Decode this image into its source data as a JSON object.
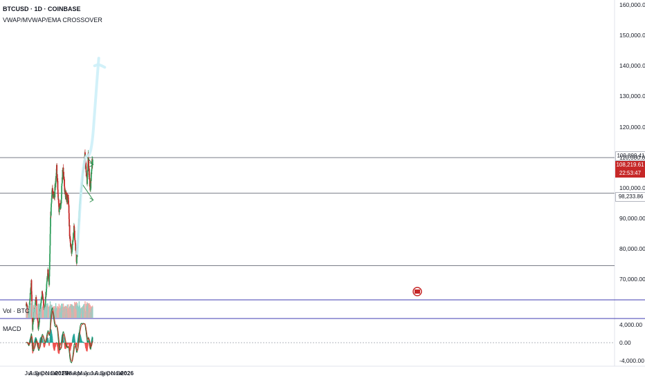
{
  "header": {
    "symbol_line": "BTCUSD · 1D · COINBASE",
    "indicator_line": "VWAP/MVWAP/EMA CROSSOVER"
  },
  "panes": {
    "volume_label": "Vol · BTC",
    "macd_label": "MACD"
  },
  "chart_data": {
    "type": "candlestick",
    "price_axis": {
      "ticks": [
        "160,000.00",
        "150,000.00",
        "140,000.00",
        "130,000.00",
        "120,000.00",
        "110,000.00",
        "100,000.00",
        "90,000.00",
        "80,000.00",
        "70,000.00"
      ],
      "tick_values": [
        160000,
        150000,
        140000,
        130000,
        120000,
        110000,
        100000,
        90000,
        80000,
        70000
      ]
    },
    "macd_axis": {
      "ticks": [
        "4,000.00",
        "0.00",
        "-4,000.00"
      ],
      "tick_values": [
        4000,
        0,
        -4000
      ]
    },
    "x_axis": {
      "labels": [
        "Jul",
        "Aug",
        "Sep",
        "Oct",
        "Nov",
        "Dec",
        "2025",
        "Feb",
        "Mar",
        "Apr",
        "May",
        "Jun",
        "Jul",
        "Aug",
        "Sep",
        "Oct",
        "Nov",
        "Dec",
        "2026"
      ]
    },
    "price_labels": {
      "resistance": "109,899.41",
      "last_price": "108,219.61",
      "countdown": "22:53:47",
      "support": "98,233.86"
    },
    "levels": [
      109899.41,
      98233.86,
      74500
    ],
    "price_anchors": [
      [
        "2024-07-01",
        62000
      ],
      [
        "2024-07-14",
        58000
      ],
      [
        "2024-07-29",
        69000
      ],
      [
        "2024-08-05",
        54000
      ],
      [
        "2024-08-24",
        64000
      ],
      [
        "2024-09-06",
        53500
      ],
      [
        "2024-09-27",
        65500
      ],
      [
        "2024-10-10",
        59500
      ],
      [
        "2024-10-29",
        72500
      ],
      [
        "2024-11-05",
        68500
      ],
      [
        "2024-11-13",
        90000
      ],
      [
        "2024-11-22",
        99000
      ],
      [
        "2024-12-05",
        97500
      ],
      [
        "2024-12-17",
        106500
      ],
      [
        "2024-12-30",
        92500
      ],
      [
        "2025-01-10",
        95000
      ],
      [
        "2025-01-20",
        106500
      ],
      [
        "2025-02-03",
        97500
      ],
      [
        "2025-02-20",
        96500
      ],
      [
        "2025-02-28",
        83500
      ],
      [
        "2025-03-10",
        79000
      ],
      [
        "2025-03-24",
        87000
      ],
      [
        "2025-04-07",
        75500
      ],
      [
        "2025-04-15",
        84000
      ],
      [
        "2025-04-23",
        93500
      ],
      [
        "2025-05-08",
        102000
      ],
      [
        "2025-05-22",
        111000
      ],
      [
        "2025-06-05",
        101500
      ],
      [
        "2025-06-10",
        110000
      ],
      [
        "2025-06-22",
        99000
      ],
      [
        "2025-06-30",
        107500
      ],
      [
        "2025-07-03",
        109000
      ],
      [
        "2025-07-05",
        108219
      ]
    ],
    "drawings": {
      "channel_upper": [
        [
          "2025-05-21",
          111000
        ],
        [
          "2025-07-08",
          107600
        ]
      ],
      "channel_lower": [
        [
          "2025-05-05",
          101500
        ],
        [
          "2025-07-08",
          96000
        ]
      ],
      "freehand_projection": [
        [
          "2025-04-10",
          78500
        ],
        [
          "2025-05-14",
          111000
        ],
        [
          "2025-06-28",
          110000
        ],
        [
          "2025-07-22",
          130000
        ],
        [
          "2025-08-08",
          142500
        ]
      ],
      "freehand_cap": [
        [
          "2025-07-16",
          140000
        ],
        [
          "2025-08-08",
          140500
        ],
        [
          "2025-09-10",
          139500
        ]
      ]
    },
    "volume": {
      "series_name": "Vol · BTC"
    },
    "macd": {
      "series": [
        "MACD",
        "Signal",
        "Histogram"
      ]
    }
  },
  "colors": {
    "up": "#26a69a",
    "down": "#ef5350",
    "candle_up": "#2e9e5b",
    "candle_down": "#c62828",
    "macd_line": "#1f7a3d",
    "signal_line": "#c0392b",
    "drawing": "#cdeff8",
    "channel": "#2f8f4e",
    "level": "#787b86",
    "pane_border": "#3f3bb0",
    "last_price_bg": "#c62828",
    "axis_text": "#131722"
  }
}
